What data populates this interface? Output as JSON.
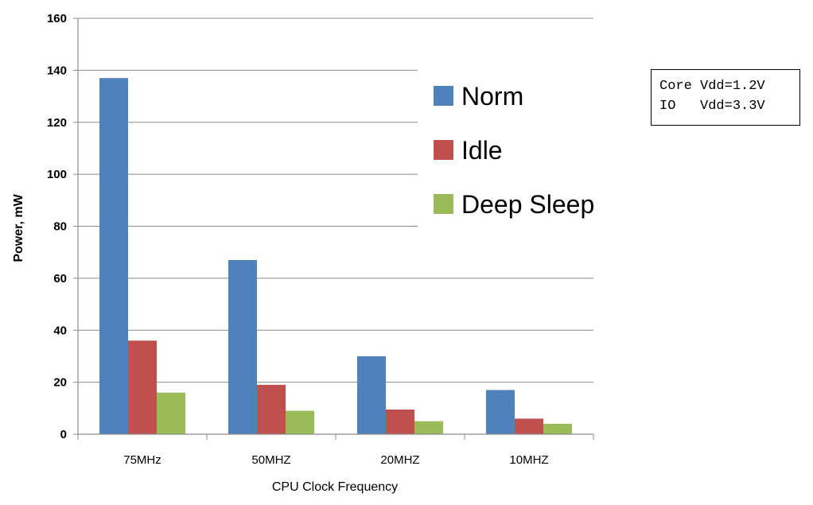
{
  "chart_data": {
    "type": "bar",
    "categories": [
      "75MHz",
      "50MHZ",
      "20MHZ",
      "10MHZ"
    ],
    "series": [
      {
        "name": "Norm",
        "values": [
          137,
          67,
          30,
          17
        ],
        "color": "#4f81bd"
      },
      {
        "name": "Idle",
        "values": [
          36,
          19,
          9.5,
          6
        ],
        "color": "#c0504d"
      },
      {
        "name": "Deep Sleep",
        "values": [
          16,
          9,
          5,
          4
        ],
        "color": "#9bbb59"
      }
    ],
    "title": "",
    "xlabel": "CPU Clock Frequency",
    "ylabel": "Power, mW",
    "ylim": [
      0,
      160
    ],
    "yticks": [
      0,
      20,
      40,
      60,
      80,
      100,
      120,
      140,
      160
    ],
    "grid": true,
    "legend_position": "right"
  },
  "annotation": {
    "lines": [
      "Core Vdd=1.2V",
      "IO   Vdd=3.3V"
    ]
  }
}
